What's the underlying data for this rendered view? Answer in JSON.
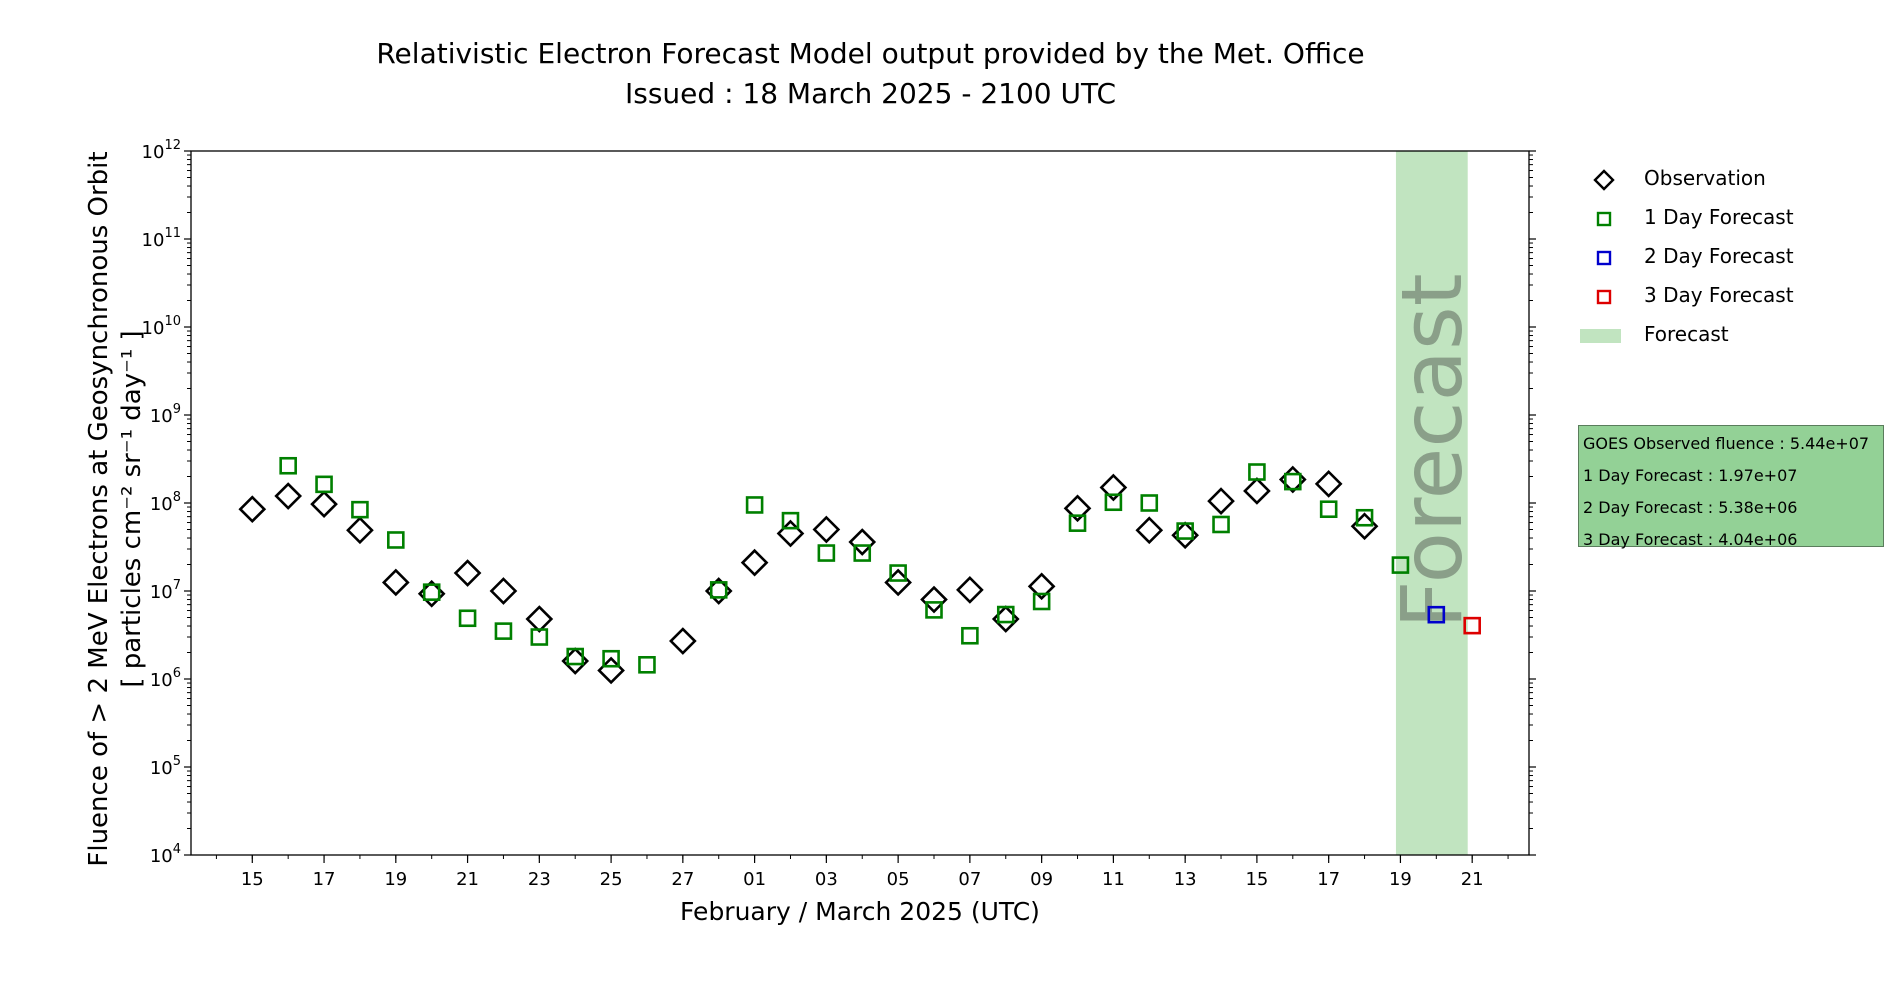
{
  "chart_data": {
    "type": "scatter",
    "title": "Relativistic Electron Forecast Model output provided by the Met. Office",
    "subtitle": "Issued : 18 March 2025 - 2100 UTC",
    "ylabel_line1": "Fluence of > 2 MeV Electrons at Geosynchronous Orbit",
    "ylabel_line2": "[ particles cm⁻² sr⁻¹ day⁻¹ ]",
    "xlabel": "February / March 2025 (UTC)",
    "y_scale": "log",
    "ylim": [
      10000,
      1000000000000
    ],
    "xlim": [
      "2025-02-13T07:00",
      "2025-03-22T14:00"
    ],
    "y_ticks": [
      {
        "value": 10000,
        "label_base": "10",
        "label_exp": "4"
      },
      {
        "value": 100000,
        "label_base": "10",
        "label_exp": "5"
      },
      {
        "value": 1000000,
        "label_base": "10",
        "label_exp": "6"
      },
      {
        "value": 10000000,
        "label_base": "10",
        "label_exp": "7"
      },
      {
        "value": 100000000,
        "label_base": "10",
        "label_exp": "8"
      },
      {
        "value": 1000000000,
        "label_base": "10",
        "label_exp": "9"
      },
      {
        "value": 10000000000,
        "label_base": "10",
        "label_exp": "10"
      },
      {
        "value": 100000000000,
        "label_base": "10",
        "label_exp": "11"
      },
      {
        "value": 1000000000000,
        "label_base": "10",
        "label_exp": "12"
      }
    ],
    "x_ticks": [
      {
        "date": "2025-02-15",
        "label": "15"
      },
      {
        "date": "2025-02-17",
        "label": "17"
      },
      {
        "date": "2025-02-19",
        "label": "19"
      },
      {
        "date": "2025-02-21",
        "label": "21"
      },
      {
        "date": "2025-02-23",
        "label": "23"
      },
      {
        "date": "2025-02-25",
        "label": "25"
      },
      {
        "date": "2025-02-27",
        "label": "27"
      },
      {
        "date": "2025-03-01",
        "label": "01"
      },
      {
        "date": "2025-03-03",
        "label": "03"
      },
      {
        "date": "2025-03-05",
        "label": "05"
      },
      {
        "date": "2025-03-07",
        "label": "07"
      },
      {
        "date": "2025-03-09",
        "label": "09"
      },
      {
        "date": "2025-03-11",
        "label": "11"
      },
      {
        "date": "2025-03-13",
        "label": "13"
      },
      {
        "date": "2025-03-15",
        "label": "15"
      },
      {
        "date": "2025-03-17",
        "label": "17"
      },
      {
        "date": "2025-03-19",
        "label": "19"
      },
      {
        "date": "2025-03-21",
        "label": "21"
      }
    ],
    "forecast_region": {
      "start": "2025-03-18T21:00",
      "end": "2025-03-20T21:00",
      "label": "Forecast",
      "color": "#c1e4c0"
    },
    "series": [
      {
        "name": "Observation",
        "marker": "diamond",
        "color": "#000000",
        "points": [
          {
            "x": "2025-02-15",
            "y": 85000000
          },
          {
            "x": "2025-02-16",
            "y": 120000000
          },
          {
            "x": "2025-02-17",
            "y": 97000000
          },
          {
            "x": "2025-02-18",
            "y": 49000000
          },
          {
            "x": "2025-02-19",
            "y": 12500000
          },
          {
            "x": "2025-02-20",
            "y": 9300000
          },
          {
            "x": "2025-02-21",
            "y": 16000000
          },
          {
            "x": "2025-02-22",
            "y": 10000000
          },
          {
            "x": "2025-02-23",
            "y": 4800000
          },
          {
            "x": "2025-02-24",
            "y": 1600000
          },
          {
            "x": "2025-02-25",
            "y": 1250000
          },
          {
            "x": "2025-02-27",
            "y": 2700000
          },
          {
            "x": "2025-02-28",
            "y": 10000000
          },
          {
            "x": "2025-03-01",
            "y": 21000000
          },
          {
            "x": "2025-03-02",
            "y": 45000000
          },
          {
            "x": "2025-03-03",
            "y": 50000000
          },
          {
            "x": "2025-03-04",
            "y": 36000000
          },
          {
            "x": "2025-03-05",
            "y": 12500000
          },
          {
            "x": "2025-03-06",
            "y": 8000000
          },
          {
            "x": "2025-03-07",
            "y": 10300000
          },
          {
            "x": "2025-03-08",
            "y": 4800000
          },
          {
            "x": "2025-03-09",
            "y": 11300000
          },
          {
            "x": "2025-03-10",
            "y": 87000000
          },
          {
            "x": "2025-03-11",
            "y": 150000000
          },
          {
            "x": "2025-03-12",
            "y": 49000000
          },
          {
            "x": "2025-03-13",
            "y": 43000000
          },
          {
            "x": "2025-03-14",
            "y": 105000000
          },
          {
            "x": "2025-03-15",
            "y": 137000000
          },
          {
            "x": "2025-03-16",
            "y": 185000000
          },
          {
            "x": "2025-03-17",
            "y": 165000000
          },
          {
            "x": "2025-03-18",
            "y": 54400000
          }
        ]
      },
      {
        "name": "1 Day Forecast",
        "marker": "square",
        "color": "#008000",
        "points": [
          {
            "x": "2025-02-16",
            "y": 265000000
          },
          {
            "x": "2025-02-17",
            "y": 163000000
          },
          {
            "x": "2025-02-18",
            "y": 84000000
          },
          {
            "x": "2025-02-19",
            "y": 38000000
          },
          {
            "x": "2025-02-20",
            "y": 9700000
          },
          {
            "x": "2025-02-21",
            "y": 4900000
          },
          {
            "x": "2025-02-22",
            "y": 3500000
          },
          {
            "x": "2025-02-23",
            "y": 3000000
          },
          {
            "x": "2025-02-24",
            "y": 1800000
          },
          {
            "x": "2025-02-25",
            "y": 1700000
          },
          {
            "x": "2025-02-26",
            "y": 1450000
          },
          {
            "x": "2025-02-28",
            "y": 10300000
          },
          {
            "x": "2025-03-01",
            "y": 95000000
          },
          {
            "x": "2025-03-02",
            "y": 63000000
          },
          {
            "x": "2025-03-03",
            "y": 27000000
          },
          {
            "x": "2025-03-04",
            "y": 27000000
          },
          {
            "x": "2025-03-05",
            "y": 16000000
          },
          {
            "x": "2025-03-06",
            "y": 6100000
          },
          {
            "x": "2025-03-07",
            "y": 3100000
          },
          {
            "x": "2025-03-08",
            "y": 5400000
          },
          {
            "x": "2025-03-09",
            "y": 7600000
          },
          {
            "x": "2025-03-10",
            "y": 59000000
          },
          {
            "x": "2025-03-11",
            "y": 102000000
          },
          {
            "x": "2025-03-12",
            "y": 100000000
          },
          {
            "x": "2025-03-13",
            "y": 48000000
          },
          {
            "x": "2025-03-14",
            "y": 57000000
          },
          {
            "x": "2025-03-15",
            "y": 225000000
          },
          {
            "x": "2025-03-16",
            "y": 175000000
          },
          {
            "x": "2025-03-17",
            "y": 85000000
          },
          {
            "x": "2025-03-18",
            "y": 68000000
          },
          {
            "x": "2025-03-19",
            "y": 19700000
          }
        ]
      },
      {
        "name": "2 Day Forecast",
        "marker": "square",
        "color": "#0000cc",
        "points": [
          {
            "x": "2025-03-20",
            "y": 5380000
          }
        ]
      },
      {
        "name": "3 Day Forecast",
        "marker": "square",
        "color": "#dd0000",
        "points": [
          {
            "x": "2025-03-21",
            "y": 4040000
          }
        ]
      }
    ],
    "legend": {
      "placement": "right",
      "items": [
        {
          "label": "Observation",
          "marker": "diamond",
          "color": "#000000"
        },
        {
          "label": "1 Day Forecast",
          "marker": "square",
          "color": "#008000"
        },
        {
          "label": "2 Day Forecast",
          "marker": "square",
          "color": "#0000cc"
        },
        {
          "label": "3 Day Forecast",
          "marker": "square",
          "color": "#dd0000"
        },
        {
          "label": "Forecast",
          "marker": "patch",
          "color": "#c1e4c0"
        }
      ]
    },
    "info_box": {
      "color": "#93d196",
      "lines": [
        "GOES Observed fluence : 5.44e+07",
        "1 Day Forecast : 1.97e+07",
        "2 Day Forecast : 5.38e+06",
        "3 Day Forecast : 4.04e+06"
      ]
    }
  }
}
